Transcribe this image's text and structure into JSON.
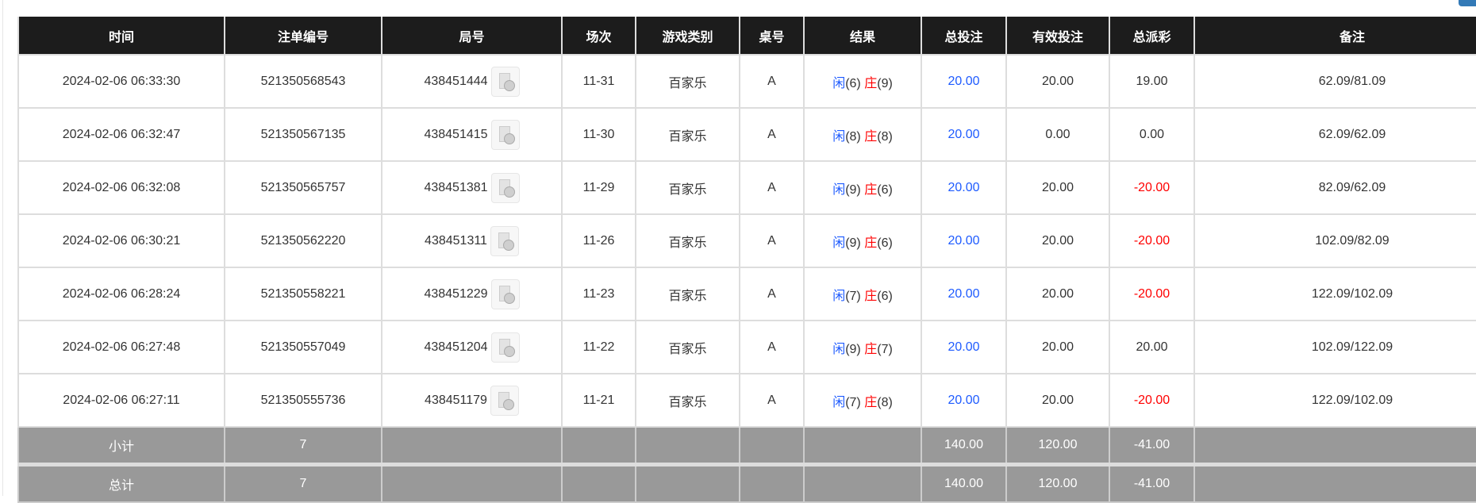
{
  "headers": [
    "时间",
    "注单编号",
    "局号",
    "场次",
    "游戏类别",
    "桌号",
    "结果",
    "总投注",
    "有效投注",
    "总派彩",
    "备注"
  ],
  "rows": [
    {
      "time": "2024-02-06 06:33:30",
      "bet_id": "521350568543",
      "round": "438451444",
      "session": "11-31",
      "game": "百家乐",
      "table": "A",
      "player": "闲",
      "player_pts": "(6)",
      "banker": "庄",
      "banker_pts": "(9)",
      "total_bet": "20.00",
      "valid_bet": "20.00",
      "payout": "19.00",
      "payout_neg": false,
      "note": "62.09/81.09"
    },
    {
      "time": "2024-02-06 06:32:47",
      "bet_id": "521350567135",
      "round": "438451415",
      "session": "11-30",
      "game": "百家乐",
      "table": "A",
      "player": "闲",
      "player_pts": "(8)",
      "banker": "庄",
      "banker_pts": "(8)",
      "total_bet": "20.00",
      "valid_bet": "0.00",
      "payout": "0.00",
      "payout_neg": false,
      "note": "62.09/62.09"
    },
    {
      "time": "2024-02-06 06:32:08",
      "bet_id": "521350565757",
      "round": "438451381",
      "session": "11-29",
      "game": "百家乐",
      "table": "A",
      "player": "闲",
      "player_pts": "(9)",
      "banker": "庄",
      "banker_pts": "(6)",
      "total_bet": "20.00",
      "valid_bet": "20.00",
      "payout": "-20.00",
      "payout_neg": true,
      "note": "82.09/62.09"
    },
    {
      "time": "2024-02-06 06:30:21",
      "bet_id": "521350562220",
      "round": "438451311",
      "session": "11-26",
      "game": "百家乐",
      "table": "A",
      "player": "闲",
      "player_pts": "(9)",
      "banker": "庄",
      "banker_pts": "(6)",
      "total_bet": "20.00",
      "valid_bet": "20.00",
      "payout": "-20.00",
      "payout_neg": true,
      "note": "102.09/82.09"
    },
    {
      "time": "2024-02-06 06:28:24",
      "bet_id": "521350558221",
      "round": "438451229",
      "session": "11-23",
      "game": "百家乐",
      "table": "A",
      "player": "闲",
      "player_pts": "(7)",
      "banker": "庄",
      "banker_pts": "(6)",
      "total_bet": "20.00",
      "valid_bet": "20.00",
      "payout": "-20.00",
      "payout_neg": true,
      "note": "122.09/102.09"
    },
    {
      "time": "2024-02-06 06:27:48",
      "bet_id": "521350557049",
      "round": "438451204",
      "session": "11-22",
      "game": "百家乐",
      "table": "A",
      "player": "闲",
      "player_pts": "(9)",
      "banker": "庄",
      "banker_pts": "(7)",
      "total_bet": "20.00",
      "valid_bet": "20.00",
      "payout": "20.00",
      "payout_neg": false,
      "note": "102.09/122.09"
    },
    {
      "time": "2024-02-06 06:27:11",
      "bet_id": "521350555736",
      "round": "438451179",
      "session": "11-21",
      "game": "百家乐",
      "table": "A",
      "player": "闲",
      "player_pts": "(7)",
      "banker": "庄",
      "banker_pts": "(8)",
      "total_bet": "20.00",
      "valid_bet": "20.00",
      "payout": "-20.00",
      "payout_neg": true,
      "note": "122.09/102.09"
    }
  ],
  "subtotal": {
    "label": "小计",
    "count": "7",
    "total_bet": "140.00",
    "valid_bet": "120.00",
    "payout": "-41.00"
  },
  "total": {
    "label": "总计",
    "count": "7",
    "total_bet": "140.00",
    "valid_bet": "120.00",
    "payout": "-41.00"
  },
  "colors": {
    "header_bg": "#1c1c1c",
    "player": "#1e5bff",
    "banker": "#ff0000",
    "summary_bg": "#999999"
  }
}
